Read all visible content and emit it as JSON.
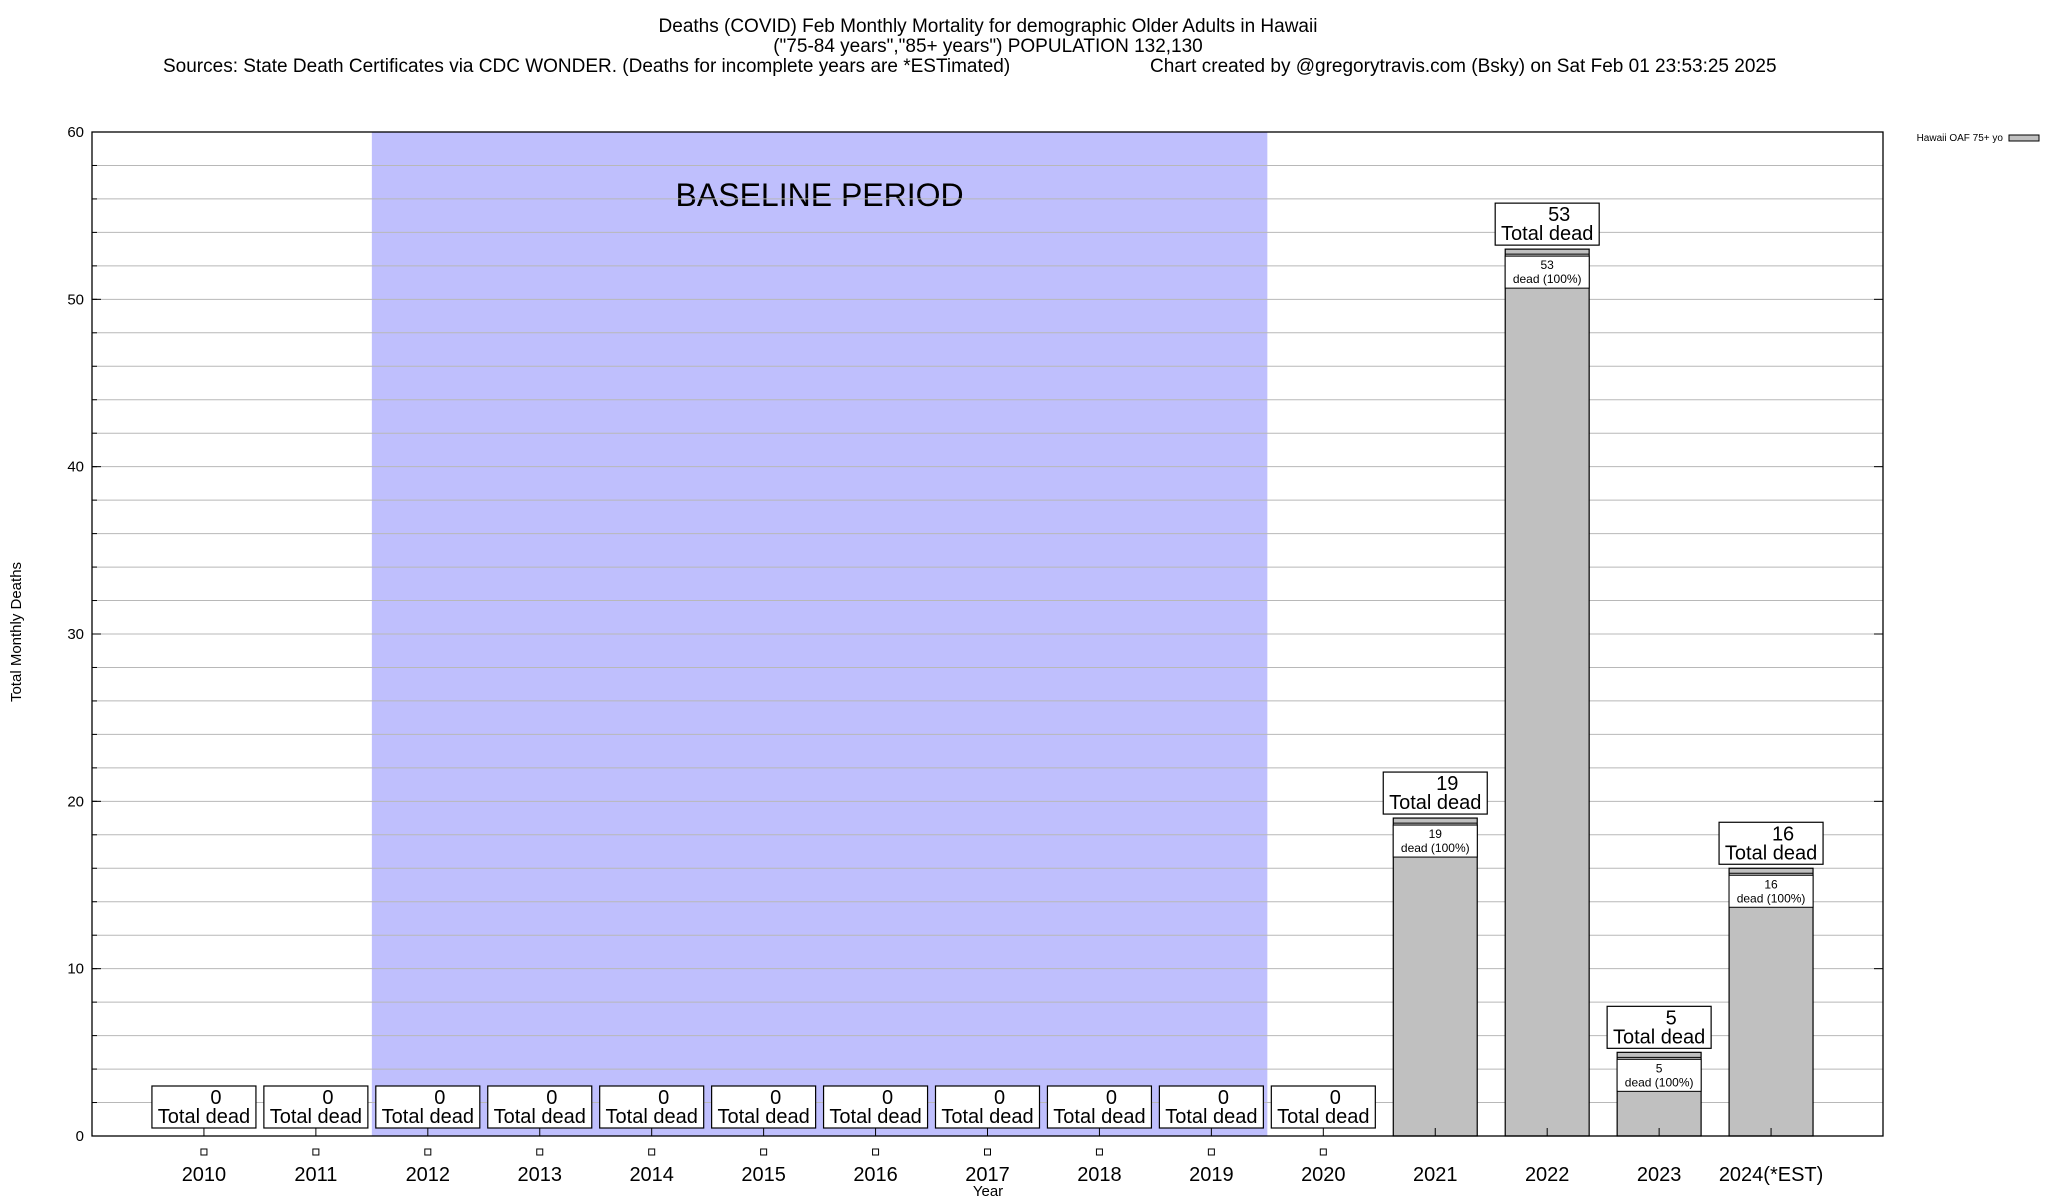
{
  "chart_data": {
    "type": "bar",
    "title": "Deaths (COVID) Feb Monthly Mortality for demographic Older Adults in Hawaii",
    "subtitle": "(\"75-84 years\",\"85+ years\") POPULATION 132,130",
    "sources": "Sources: State Death Certificates via CDC WONDER. (Deaths for incomplete years are *ESTimated)",
    "credit": "Chart created by @gregorytravis.com (Bsky) on Sat Feb 01 23:53:25 2025",
    "xlabel": "Year",
    "ylabel": "Total Monthly Deaths",
    "ylim": [
      0,
      60
    ],
    "yticks": [
      0,
      10,
      20,
      30,
      40,
      50,
      60
    ],
    "minor_grid_step": 2,
    "grid": true,
    "legend_position": "top-right",
    "baseline_label": "BASELINE PERIOD",
    "baseline_range": [
      "2012",
      "2019"
    ],
    "baseline_color": "#bfbffd",
    "bar_color": "#c0c0c0",
    "total_label": "Total dead",
    "categories": [
      "2010",
      "2011",
      "2012",
      "2013",
      "2014",
      "2015",
      "2016",
      "2017",
      "2018",
      "2019",
      "2020",
      "2021",
      "2022",
      "2023",
      "2024(*EST)"
    ],
    "series": [
      {
        "name": "Hawaii OAF 75+ yo",
        "values": [
          0,
          0,
          0,
          0,
          0,
          0,
          0,
          0,
          0,
          0,
          0,
          19,
          53,
          5,
          16
        ],
        "inner_labels": [
          "",
          "",
          "",
          "",
          "",
          "",
          "",
          "",
          "",
          "",
          "",
          "dead (100%)",
          "dead (100%)",
          "dead (100%)",
          "dead (100%)"
        ]
      }
    ]
  }
}
